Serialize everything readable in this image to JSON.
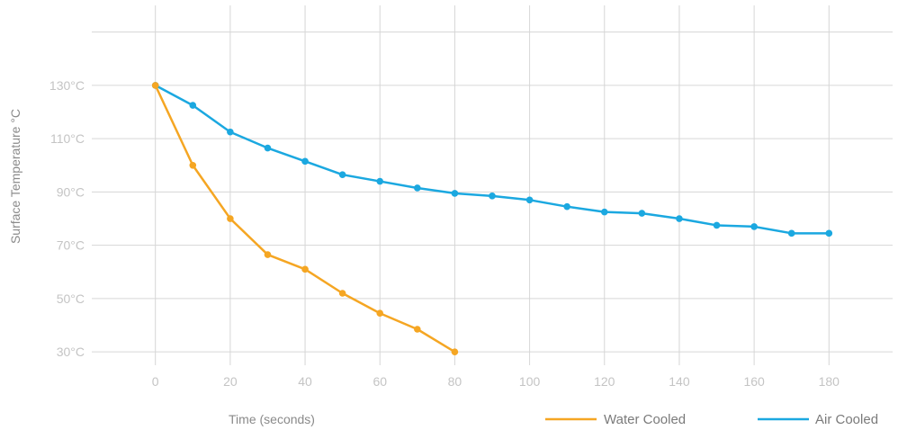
{
  "chart_data": {
    "type": "line",
    "xlabel": "Time (seconds)",
    "ylabel": "Surface Temperature °C",
    "x_ticks": [
      0,
      20,
      40,
      60,
      80,
      100,
      120,
      140,
      160,
      180
    ],
    "y_ticks": [
      30,
      50,
      70,
      90,
      110,
      130
    ],
    "y_tick_suffix": "°C",
    "xlim": [
      -17,
      197
    ],
    "ylim": [
      25,
      160
    ],
    "grid": true,
    "legend_position": "bottom-right",
    "series": [
      {
        "name": "Water Cooled",
        "color": "#f5a623",
        "x": [
          0,
          10,
          20,
          30,
          40,
          50,
          60,
          70,
          80
        ],
        "y": [
          130,
          100,
          80,
          66.5,
          61,
          52,
          44.5,
          38.5,
          30
        ]
      },
      {
        "name": "Air Cooled",
        "color": "#1ba8e0",
        "x": [
          0,
          10,
          20,
          30,
          40,
          50,
          60,
          70,
          80,
          90,
          100,
          110,
          120,
          130,
          140,
          150,
          160,
          170,
          180
        ],
        "y": [
          130,
          122.5,
          112.5,
          106.5,
          101.5,
          96.5,
          94,
          91.5,
          89.5,
          88.5,
          87,
          84.5,
          82.5,
          82,
          80,
          77.5,
          77,
          74.5,
          74.5
        ]
      }
    ]
  }
}
